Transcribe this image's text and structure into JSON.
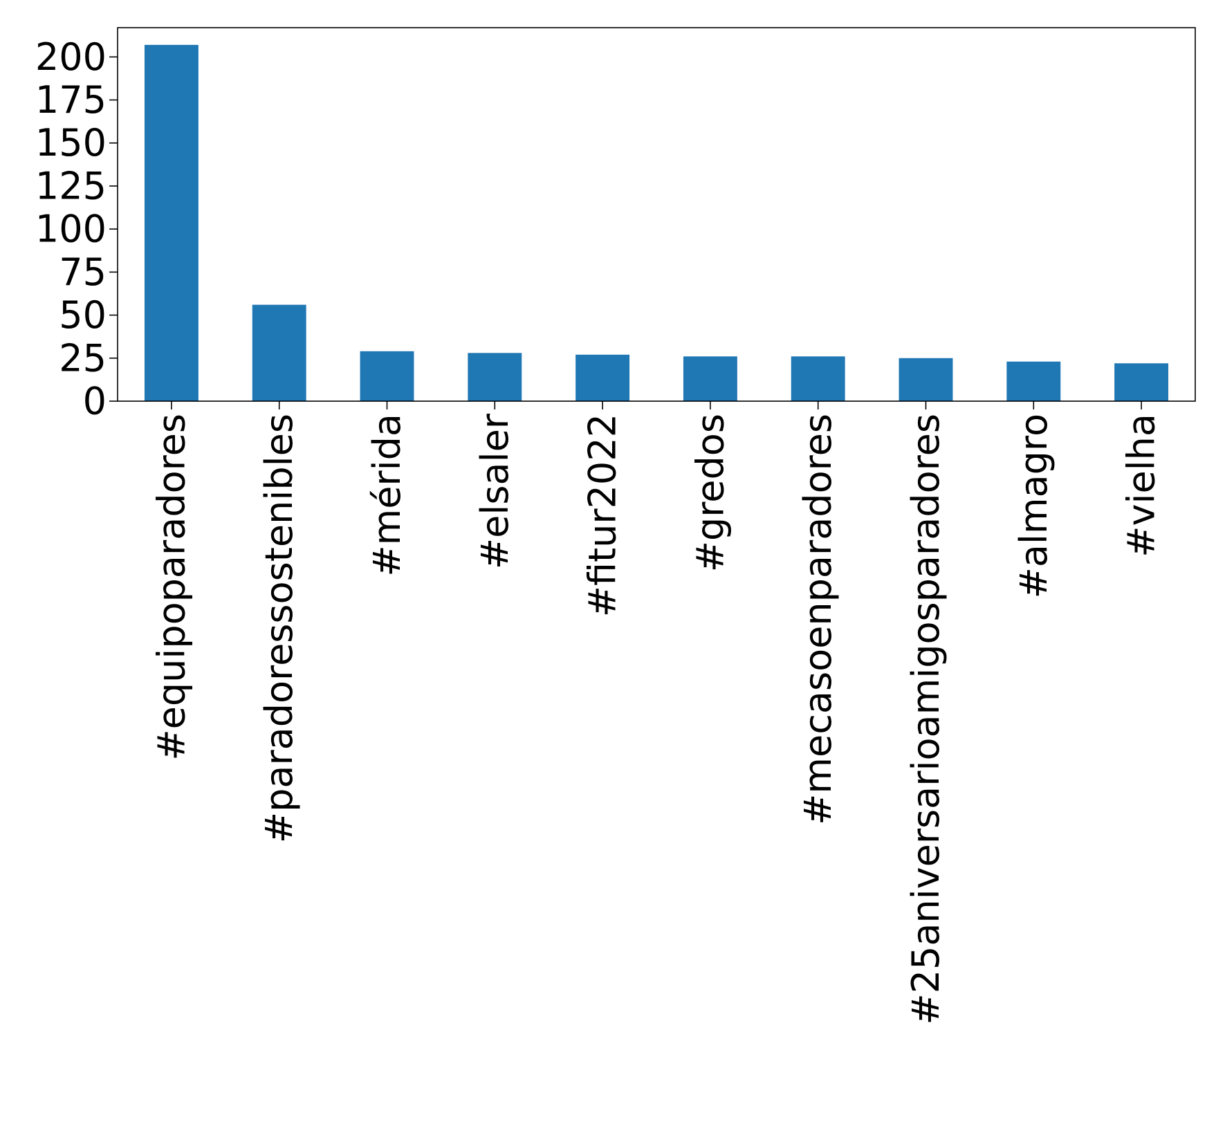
{
  "chart_data": {
    "type": "bar",
    "title": "",
    "xlabel": "",
    "ylabel": "",
    "categories": [
      "#equipoparadores",
      "#paradoressostenibles",
      "#mérida",
      "#elsaler",
      "#fitur2022",
      "#gredos",
      "#mecasoenparadores",
      "#25aniversarioamigosparadores",
      "#almagro",
      "#vielha"
    ],
    "values": [
      207,
      56,
      29,
      28,
      27,
      26,
      26,
      25,
      23,
      22
    ],
    "ylim": [
      0,
      217
    ],
    "yticks": [
      0,
      25,
      50,
      75,
      100,
      125,
      150,
      175,
      200
    ],
    "bar_color": "#1f77b4",
    "grid": false,
    "legend": "none"
  }
}
